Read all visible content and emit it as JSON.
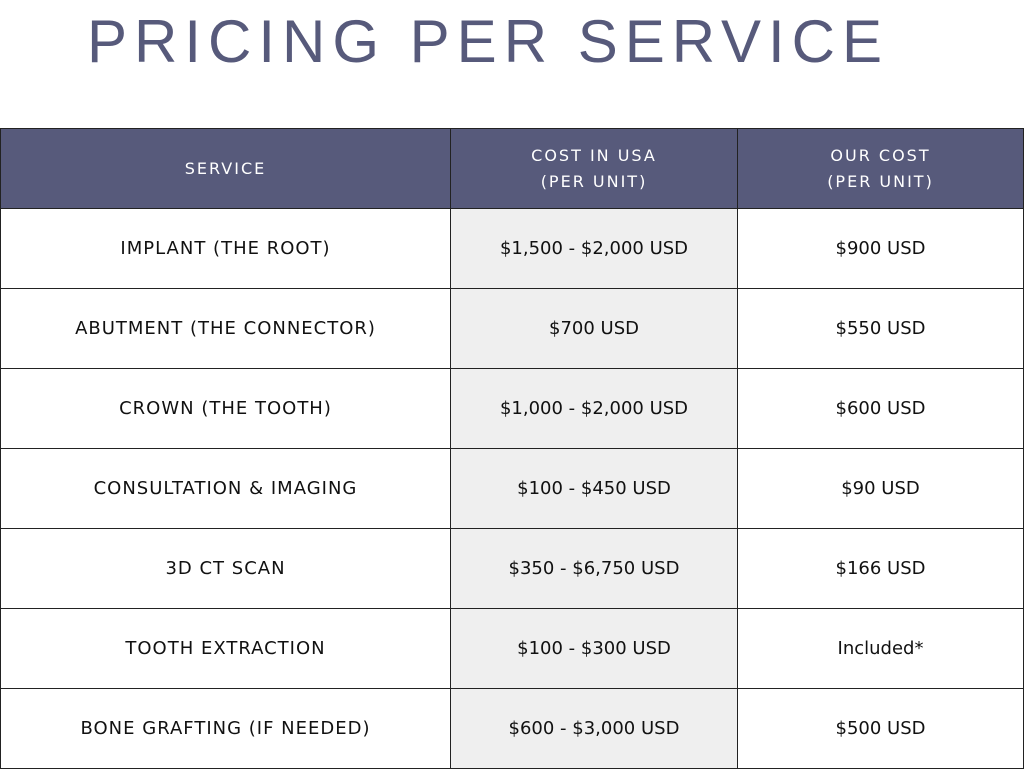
{
  "title": "PRICING PER SERVICE",
  "table": {
    "header": [
      [
        "SERVICE"
      ],
      [
        "COST IN USA",
        "(PER UNIT)"
      ],
      [
        "OUR COST",
        "(PER UNIT)"
      ]
    ],
    "rows": [
      [
        "IMPLANT (THE ROOT)",
        "$1,500 - $2,000 USD",
        "$900 USD"
      ],
      [
        "ABUTMENT (THE CONNECTOR)",
        "$700 USD",
        "$550 USD"
      ],
      [
        "CROWN (THE TOOTH)",
        "$1,000 - $2,000 USD",
        "$600 USD"
      ],
      [
        "CONSULTATION & IMAGING",
        "$100 - $450 USD",
        "$90 USD"
      ],
      [
        "3D CT SCAN",
        "$350 - $6,750 USD",
        "$166 USD"
      ],
      [
        "TOOTH EXTRACTION",
        "$100 - $300 USD",
        "Included*"
      ],
      [
        "BONE GRAFTING (IF NEEDED)",
        "$600 - $3,000 USD",
        "$500 USD"
      ]
    ]
  }
}
